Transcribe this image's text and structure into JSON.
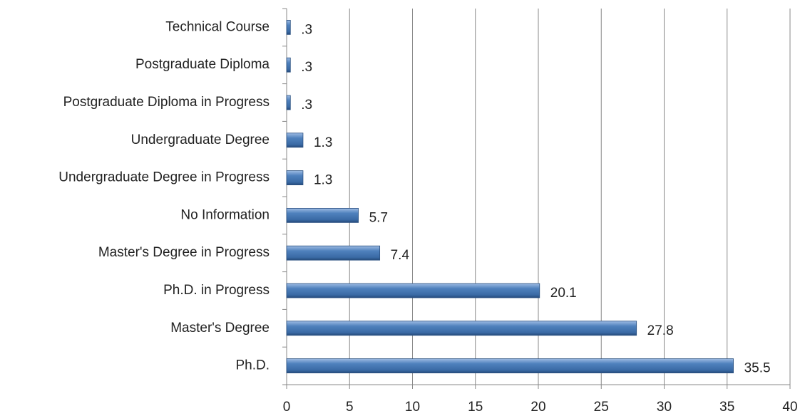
{
  "chart_data": {
    "type": "hbar",
    "categories": [
      "Technical Course",
      "Postgraduate Diploma",
      "Postgraduate Diploma in Progress",
      "Undergraduate Degree",
      "Undergraduate Degree in Progress",
      "No Information",
      "Master's Degree in Progress",
      "Ph.D. in Progress",
      "Master's Degree",
      "Ph.D."
    ],
    "values": [
      0.3,
      0.3,
      0.3,
      1.3,
      1.3,
      5.7,
      7.4,
      20.1,
      27.8,
      35.5
    ],
    "value_labels": [
      ".3",
      ".3",
      ".3",
      "1.3",
      "1.3",
      "5.7",
      "7.4",
      "20.1",
      "27.8",
      "35.5"
    ],
    "color": "#4f81bd",
    "xlim": [
      0,
      40
    ],
    "xticks": [
      0,
      5,
      10,
      15,
      20,
      25,
      30,
      35,
      40
    ],
    "grid": true
  }
}
